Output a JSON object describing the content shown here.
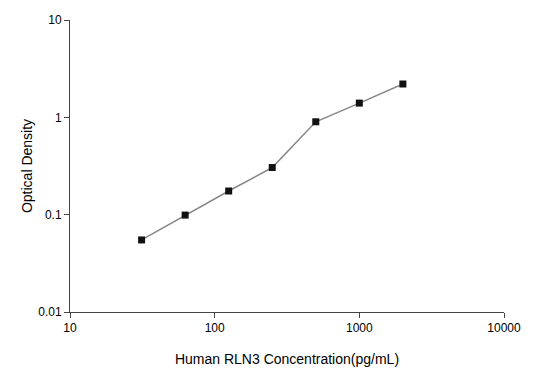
{
  "chart_data": {
    "type": "line",
    "x": [
      31.25,
      62.5,
      125,
      250,
      500,
      1000,
      2000
    ],
    "values": [
      0.055,
      0.099,
      0.175,
      0.305,
      0.9,
      1.4,
      2.2
    ],
    "xlabel": "Human RLN3 Concentration(pg/mL)",
    "ylabel": "Optical Density",
    "xlim": [
      10,
      10000
    ],
    "ylim": [
      0.01,
      10
    ],
    "xticks": [
      10,
      100,
      1000,
      10000
    ],
    "yticks": [
      0.01,
      0.1,
      1,
      10
    ],
    "log": true,
    "grid": false,
    "color": "#888888",
    "colors": [
      "#111111",
      "#111111",
      "#111111",
      "#111111",
      "#111111",
      "#111111",
      "#111111"
    ],
    "marker": "square",
    "line_style": "solid"
  }
}
